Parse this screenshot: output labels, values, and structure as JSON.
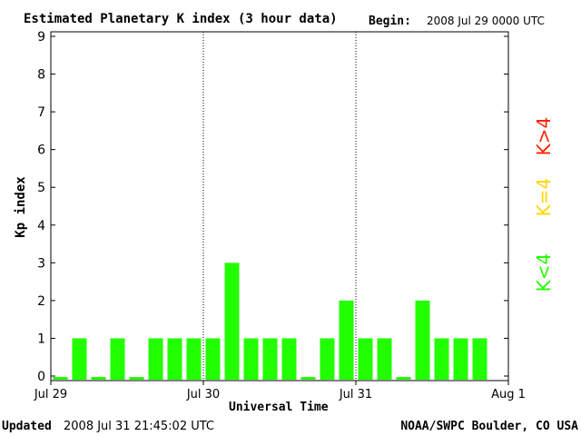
{
  "header": {
    "title": "Estimated Planetary K index (3 hour data)",
    "begin_label": "Begin:",
    "begin_value": "2008 Jul 29 0000 UTC"
  },
  "footer": {
    "updated_label": "Updated",
    "updated_value": "2008 Jul 31 21:45:02 UTC",
    "source": "NOAA/SWPC Boulder, CO USA"
  },
  "legend": {
    "items": [
      {
        "label": "K<4",
        "color": "#22ff00"
      },
      {
        "label": "K=4",
        "color": "#ffd700"
      },
      {
        "label": "K>4",
        "color": "#ff2200"
      }
    ]
  },
  "colors": {
    "bar_low": "#22ff00",
    "bar_eq4": "#ffd700",
    "bar_high": "#ff2200",
    "axis": "#000000"
  },
  "chart_data": {
    "type": "bar",
    "title": "Estimated Planetary K index (3 hour data)",
    "xlabel": "Universal Time",
    "ylabel": "Kp index",
    "ylim": [
      0,
      9
    ],
    "yticks": [
      "0",
      "1",
      "2",
      "3",
      "4",
      "5",
      "6",
      "7",
      "8",
      "9"
    ],
    "xticks": [
      "Jul 29",
      "Jul 30",
      "Jul 31",
      "Aug 1"
    ],
    "day_separators_after_bar": [
      8,
      16
    ],
    "grid": false,
    "bin_hours": 3,
    "values": [
      0,
      1,
      0,
      1,
      0,
      1,
      1,
      1,
      1,
      3,
      1,
      1,
      1,
      0,
      1,
      2,
      1,
      1,
      0,
      2,
      1,
      1,
      1
    ]
  }
}
